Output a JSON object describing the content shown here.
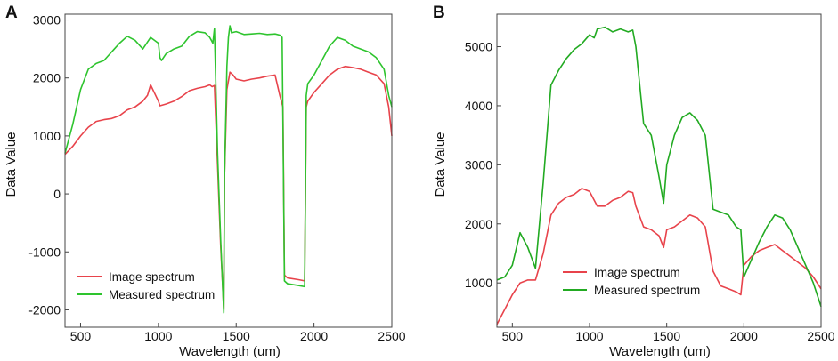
{
  "chart_data": [
    {
      "type": "line",
      "panel_label": "A",
      "title": "",
      "xlabel": "Wavelength (um)",
      "ylabel": "Data Value",
      "xlim": [
        400,
        2500
      ],
      "ylim": [
        -2300,
        3100
      ],
      "xticks": [
        500,
        1000,
        1500,
        2000,
        2500
      ],
      "yticks": [
        -2000,
        -1000,
        0,
        1000,
        2000,
        3000
      ],
      "legend_position": "lower-left",
      "grid": false,
      "series": [
        {
          "name": "Image spectrum",
          "color": "#e8434b",
          "x": [
            400,
            450,
            500,
            550,
            600,
            650,
            700,
            750,
            800,
            850,
            900,
            930,
            950,
            1000,
            1010,
            1050,
            1100,
            1150,
            1200,
            1250,
            1300,
            1330,
            1345,
            1360,
            1380,
            1400,
            1420,
            1425,
            1440,
            1460,
            1480,
            1500,
            1550,
            1600,
            1650,
            1700,
            1750,
            1780,
            1800,
            1810,
            1830,
            1900,
            1940,
            1950,
            1960,
            2000,
            2050,
            2100,
            2150,
            2200,
            2250,
            2300,
            2350,
            2400,
            2450,
            2480,
            2500
          ],
          "values": [
            680,
            820,
            1000,
            1150,
            1250,
            1280,
            1300,
            1350,
            1450,
            1500,
            1600,
            1700,
            1880,
            1600,
            1520,
            1550,
            1600,
            1680,
            1780,
            1820,
            1850,
            1880,
            1850,
            1870,
            500,
            -900,
            -2000,
            300,
            1800,
            2100,
            2050,
            1980,
            1950,
            1980,
            2000,
            2030,
            2050,
            1700,
            1500,
            -1400,
            -1450,
            -1480,
            -1500,
            1500,
            1600,
            1750,
            1900,
            2050,
            2150,
            2200,
            2180,
            2150,
            2100,
            2050,
            1900,
            1500,
            1000
          ]
        },
        {
          "name": "Measured spectrum",
          "color": "#2ec42e",
          "x": [
            400,
            450,
            500,
            550,
            600,
            650,
            700,
            750,
            800,
            850,
            900,
            950,
            1000,
            1010,
            1020,
            1050,
            1100,
            1150,
            1200,
            1250,
            1300,
            1330,
            1340,
            1350,
            1360,
            1380,
            1400,
            1420,
            1425,
            1440,
            1450,
            1460,
            1470,
            1500,
            1550,
            1600,
            1650,
            1700,
            1750,
            1780,
            1795,
            1800,
            1810,
            1830,
            1900,
            1940,
            1950,
            1960,
            2000,
            2050,
            2100,
            2150,
            2200,
            2250,
            2300,
            2350,
            2400,
            2450,
            2480,
            2500
          ],
          "values": [
            700,
            1200,
            1800,
            2150,
            2250,
            2300,
            2450,
            2600,
            2720,
            2650,
            2500,
            2700,
            2600,
            2350,
            2300,
            2420,
            2500,
            2550,
            2720,
            2800,
            2780,
            2700,
            2650,
            2600,
            2850,
            700,
            -800,
            -2050,
            300,
            2200,
            2700,
            2900,
            2780,
            2800,
            2750,
            2760,
            2770,
            2750,
            2760,
            2740,
            2700,
            1300,
            -1500,
            -1550,
            -1580,
            -1600,
            1700,
            1900,
            2050,
            2300,
            2550,
            2700,
            2650,
            2550,
            2500,
            2450,
            2350,
            2150,
            1700,
            1500
          ]
        }
      ]
    },
    {
      "type": "line",
      "panel_label": "B",
      "title": "",
      "xlabel": "Wavelength (um)",
      "ylabel": "Data Value",
      "xlim": [
        400,
        2500
      ],
      "ylim": [
        250,
        5550
      ],
      "xticks": [
        500,
        1000,
        1500,
        2000,
        2500
      ],
      "yticks": [
        1000,
        2000,
        3000,
        4000,
        5000
      ],
      "legend_position": "lower-center",
      "grid": false,
      "series": [
        {
          "name": "Image spectrum",
          "color": "#e8434b",
          "x": [
            400,
            450,
            500,
            550,
            600,
            650,
            700,
            750,
            800,
            850,
            900,
            950,
            1000,
            1050,
            1100,
            1150,
            1200,
            1250,
            1280,
            1300,
            1350,
            1400,
            1450,
            1480,
            1500,
            1550,
            1600,
            1650,
            1700,
            1750,
            1800,
            1850,
            1900,
            1950,
            1980,
            2000,
            2050,
            2100,
            2150,
            2200,
            2250,
            2300,
            2350,
            2400,
            2450,
            2500
          ],
          "values": [
            300,
            550,
            800,
            1000,
            1050,
            1050,
            1500,
            2150,
            2350,
            2450,
            2500,
            2600,
            2550,
            2300,
            2300,
            2400,
            2450,
            2550,
            2530,
            2300,
            1950,
            1900,
            1800,
            1600,
            1900,
            1950,
            2050,
            2150,
            2100,
            1950,
            1200,
            950,
            900,
            850,
            800,
            1300,
            1450,
            1550,
            1600,
            1650,
            1550,
            1450,
            1350,
            1250,
            1100,
            900
          ]
        },
        {
          "name": "Measured spectrum",
          "color": "#22aa22",
          "x": [
            400,
            450,
            500,
            550,
            600,
            650,
            700,
            750,
            800,
            850,
            900,
            950,
            1000,
            1030,
            1050,
            1100,
            1150,
            1200,
            1250,
            1280,
            1300,
            1350,
            1400,
            1450,
            1480,
            1500,
            1550,
            1600,
            1650,
            1700,
            1750,
            1800,
            1850,
            1900,
            1950,
            1980,
            2000,
            2050,
            2100,
            2150,
            2200,
            2250,
            2300,
            2350,
            2400,
            2450,
            2500
          ],
          "values": [
            1050,
            1100,
            1300,
            1850,
            1600,
            1250,
            2700,
            4350,
            4600,
            4800,
            4950,
            5050,
            5200,
            5150,
            5300,
            5330,
            5250,
            5300,
            5250,
            5280,
            5000,
            3700,
            3500,
            2800,
            2350,
            3000,
            3500,
            3800,
            3880,
            3750,
            3500,
            2250,
            2200,
            2150,
            1950,
            1900,
            1100,
            1400,
            1700,
            1950,
            2150,
            2100,
            1900,
            1600,
            1300,
            1000,
            600
          ]
        }
      ]
    }
  ]
}
